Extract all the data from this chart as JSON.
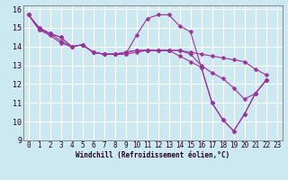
{
  "xlabel": "Windchill (Refroidissement éolien,°C)",
  "background_color": "#cce8f0",
  "line_color": "#993399",
  "grid_color": "#ffffff",
  "xlim": [
    -0.5,
    23.5
  ],
  "ylim": [
    9,
    16.2
  ],
  "xticks": [
    0,
    1,
    2,
    3,
    4,
    5,
    6,
    7,
    8,
    9,
    10,
    11,
    12,
    13,
    14,
    15,
    16,
    17,
    18,
    19,
    20,
    21,
    22,
    23
  ],
  "yticks": [
    9,
    10,
    11,
    12,
    13,
    14,
    15,
    16
  ],
  "line1_y": [
    15.7,
    15.0,
    14.7,
    14.5,
    14.0,
    14.1,
    13.7,
    13.6,
    13.6,
    13.6,
    14.6,
    15.5,
    15.7,
    15.7,
    15.1,
    14.8,
    12.9,
    11.0,
    10.1,
    9.5,
    10.4,
    11.5,
    12.2
  ],
  "line2_y": [
    15.7,
    14.9,
    14.7,
    14.3,
    14.0,
    14.1,
    13.7,
    13.6,
    13.6,
    13.7,
    13.8,
    13.8,
    13.8,
    13.8,
    13.8,
    13.7,
    13.6,
    13.5,
    13.4,
    13.3,
    13.2,
    12.8,
    12.5
  ],
  "line3_y": [
    15.7,
    15.0,
    14.7,
    14.5,
    14.0,
    14.1,
    13.7,
    13.6,
    13.6,
    13.6,
    13.7,
    13.8,
    13.8,
    13.8,
    13.8,
    13.6,
    13.0,
    12.6,
    12.3,
    11.8,
    11.2,
    11.5,
    12.2
  ],
  "line4_y": [
    15.7,
    14.9,
    14.6,
    14.2,
    14.0,
    14.1,
    13.7,
    13.6,
    13.6,
    13.7,
    13.8,
    13.8,
    13.8,
    13.8,
    13.5,
    13.2,
    12.9,
    11.0,
    10.1,
    9.5,
    10.4,
    11.5,
    12.2
  ],
  "markersize": 2.5,
  "linewidth": 0.8,
  "tick_fontsize": 5.5,
  "xlabel_fontsize": 5.5
}
